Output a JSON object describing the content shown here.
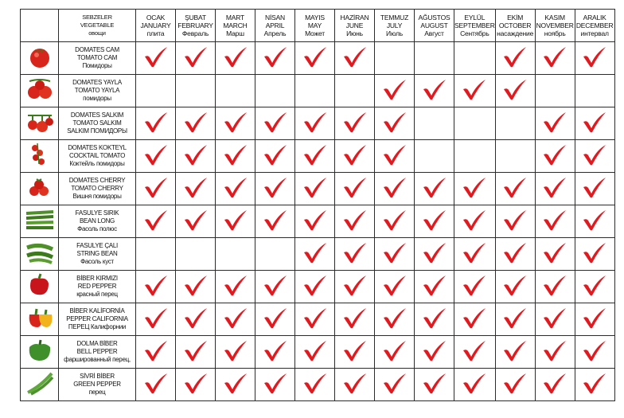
{
  "colors": {
    "check": "#e2191e",
    "grid": "#2b2b2b"
  },
  "header": {
    "vegetable_col": [
      "SEBZELER",
      "VEGETABLE",
      "овощи"
    ],
    "months": [
      [
        "OCAK",
        "JANUARY",
        "плита"
      ],
      [
        "ŞUBAT",
        "FEBRUARY",
        "Февраль"
      ],
      [
        "MART",
        "MARCH",
        "Марш"
      ],
      [
        "NİSAN",
        "APRIL",
        "Апрель"
      ],
      [
        "MAYIS",
        "MAY",
        "Может"
      ],
      [
        "HAZİRAN",
        "JUNE",
        "Июнь"
      ],
      [
        "TEMMUZ",
        "JULY",
        "Июль"
      ],
      [
        "AĞUSTOS",
        "AUGUST",
        "Август"
      ],
      [
        "EYLÜL",
        "SEPTEMBER",
        "Сентябрь"
      ],
      [
        "EKİM",
        "OCTOBER",
        "насаждение"
      ],
      [
        "KASIM",
        "NOVEMBER",
        "ноябрь"
      ],
      [
        "ARALIK",
        "DECEMBER",
        "интервал"
      ]
    ]
  },
  "rows": [
    {
      "icon": "tomato-icon",
      "name": [
        "DOMATES CAM",
        "TOMATO CAM",
        "Помидоры"
      ],
      "checks": [
        1,
        1,
        1,
        1,
        1,
        1,
        0,
        0,
        0,
        1,
        1,
        1
      ]
    },
    {
      "icon": "tomato-vine-icon",
      "name": [
        "DOMATES YAYLA",
        "TOMATO YAYLA",
        "помидоры"
      ],
      "checks": [
        0,
        0,
        0,
        0,
        0,
        0,
        1,
        1,
        1,
        1,
        0,
        0
      ]
    },
    {
      "icon": "tomato-cluster-icon",
      "name": [
        "DOMATES SALKIM",
        "TOMATO SALKIM",
        "SALKIM ПОМИДОРЫ"
      ],
      "checks": [
        1,
        1,
        1,
        1,
        1,
        1,
        1,
        0,
        0,
        0,
        1,
        1
      ]
    },
    {
      "icon": "cocktail-tomato-icon",
      "name": [
        "DOMATES KOKTEYL",
        "COCKTAIL TOMATO",
        "Коктейль помидоры"
      ],
      "checks": [
        1,
        1,
        1,
        1,
        1,
        1,
        1,
        0,
        0,
        0,
        1,
        1
      ]
    },
    {
      "icon": "cherry-tomato-icon",
      "name": [
        "DOMATES CHERRY",
        "TOMATO CHERRY",
        "Вишня помидоры"
      ],
      "checks": [
        1,
        1,
        1,
        1,
        1,
        1,
        1,
        1,
        1,
        1,
        1,
        1
      ]
    },
    {
      "icon": "long-bean-icon",
      "name": [
        "FASULYE SIRIK",
        "BEAN LONG",
        "Фасоль полюс"
      ],
      "checks": [
        1,
        1,
        1,
        1,
        1,
        1,
        1,
        1,
        1,
        1,
        1,
        1
      ]
    },
    {
      "icon": "string-bean-icon",
      "name": [
        "FASULYE ÇALI",
        "STRING BEAN",
        "Фасоль куст"
      ],
      "checks": [
        0,
        0,
        0,
        0,
        1,
        1,
        1,
        1,
        1,
        1,
        1,
        1
      ]
    },
    {
      "icon": "red-pepper-icon",
      "name": [
        "BİBER KIRMIZI",
        "RED PEPPER",
        "красный перец"
      ],
      "checks": [
        1,
        1,
        1,
        1,
        1,
        1,
        1,
        1,
        1,
        1,
        1,
        1
      ]
    },
    {
      "icon": "california-pepper-icon",
      "name": [
        "BİBER KALİFORNİA",
        "PEPPER CALIFORNIA",
        "ПЕРЕЦ Калифорнии"
      ],
      "checks": [
        1,
        1,
        1,
        1,
        1,
        1,
        1,
        1,
        1,
        1,
        1,
        1
      ]
    },
    {
      "icon": "bell-pepper-icon",
      "name": [
        "DOLMA BİBER",
        "BELL PEPPER",
        "фаршированный перец,"
      ],
      "checks": [
        1,
        1,
        1,
        1,
        1,
        1,
        1,
        1,
        1,
        1,
        1,
        1
      ]
    },
    {
      "icon": "green-pepper-icon",
      "name": [
        "SİVRİ BİBER",
        "GREEN PEPPER",
        "перец"
      ],
      "checks": [
        1,
        1,
        1,
        1,
        1,
        1,
        1,
        1,
        1,
        1,
        1,
        1
      ]
    }
  ]
}
